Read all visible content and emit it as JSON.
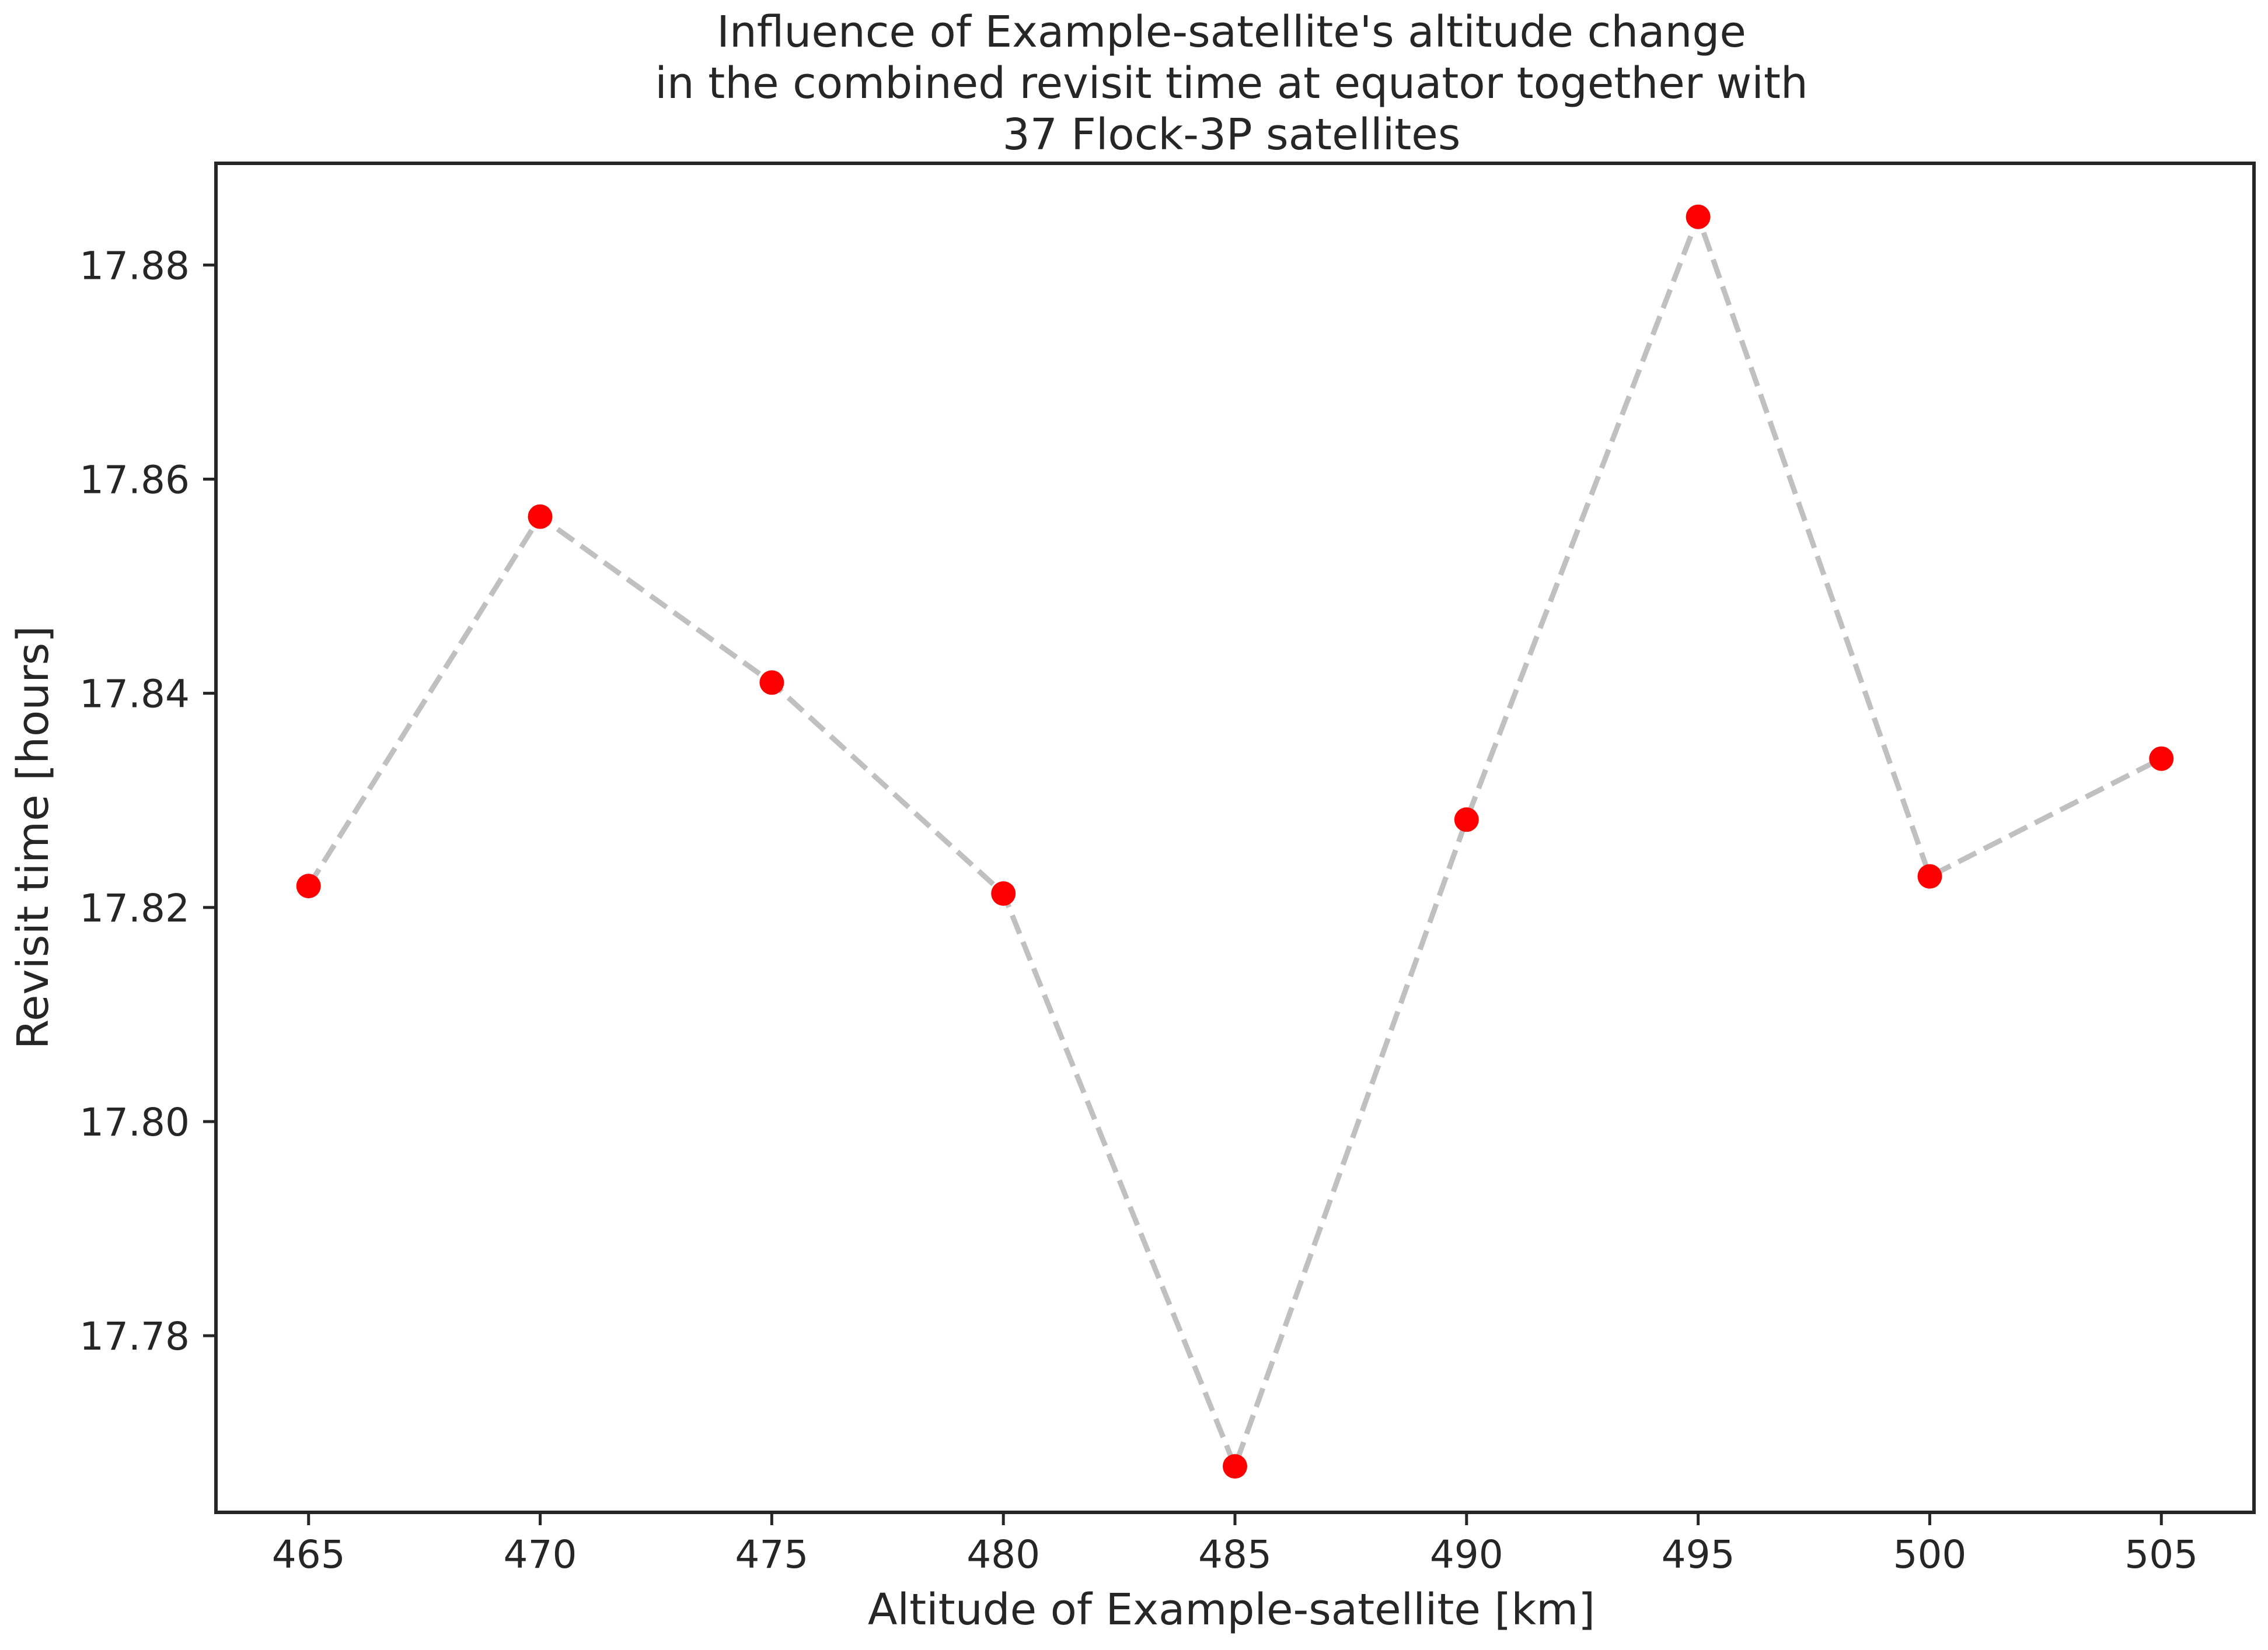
{
  "chart_data": {
    "type": "line",
    "title": [
      "Influence of Example-satellite's altitude change",
      "in the combined revisit time at equator together with",
      "37 Flock-3P satellites"
    ],
    "xlabel": "Altitude of Example-satellite [km]",
    "ylabel": "Revisit time [hours]",
    "x": [
      465,
      470,
      475,
      480,
      485,
      490,
      495,
      500,
      505
    ],
    "series": [
      {
        "values": [
          17.822,
          17.8565,
          17.841,
          17.8213,
          17.7678,
          17.8282,
          17.8845,
          17.8229,
          17.8339
        ],
        "line_color": "#c0c0c0",
        "line_style": "dashed",
        "marker_color": "#ff0000"
      }
    ],
    "xticks": [
      465,
      470,
      475,
      480,
      485,
      490,
      495,
      500,
      505
    ],
    "xtick_labels": [
      "465",
      "470",
      "475",
      "480",
      "485",
      "490",
      "495",
      "500",
      "505"
    ],
    "yticks": [
      17.78,
      17.8,
      17.82,
      17.84,
      17.86,
      17.88
    ],
    "ytick_labels": [
      "17.78",
      "17.80",
      "17.82",
      "17.84",
      "17.86",
      "17.88"
    ],
    "xlim": [
      463,
      507
    ],
    "ylim": [
      17.7635,
      17.8895
    ],
    "grid": false,
    "legend": "none"
  }
}
